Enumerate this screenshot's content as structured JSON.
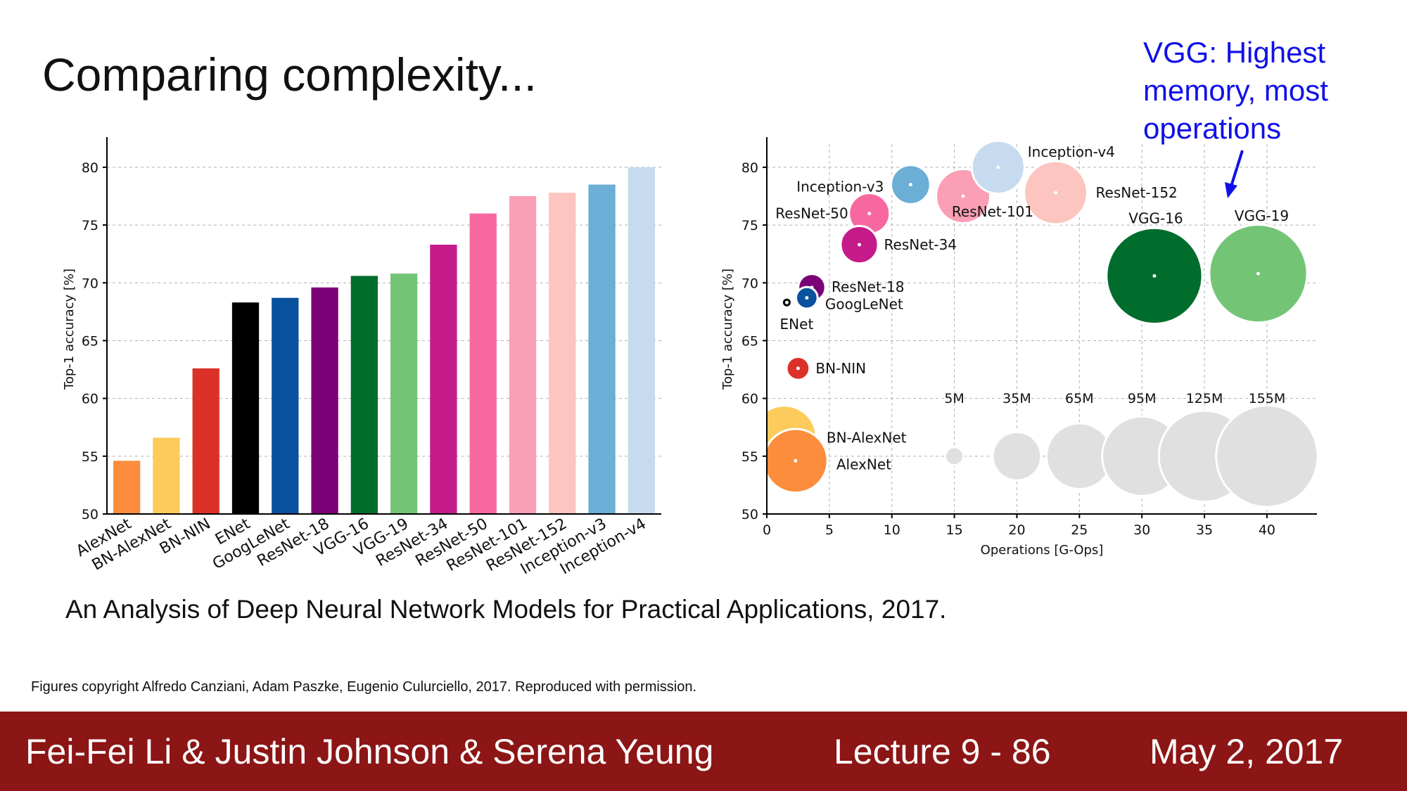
{
  "slide": {
    "title": "Comparing complexity...",
    "annotation": [
      "VGG: Highest",
      "memory, most",
      "operations"
    ],
    "citation": "An Analysis of Deep Neural Network Models for Practical Applications, 2017.",
    "copyright": "Figures copyright Alfredo Canziani, Adam Paszke, Eugenio Culurciello, 2017. Reproduced with permission.",
    "annotation_color": "#1010e8"
  },
  "footer": {
    "authors": "Fei-Fei Li & Justin Johnson & Serena Yeung",
    "lecture": "Lecture 9 - 86",
    "date": "May 2, 2017",
    "background": "#8c1515"
  },
  "chart_data": [
    {
      "type": "bar",
      "ylabel": "Top-1 accuracy [%]",
      "xlabel": "",
      "ylim": [
        50,
        82
      ],
      "yticks": [
        50,
        55,
        60,
        65,
        70,
        75,
        80
      ],
      "grid": true,
      "categories": [
        "AlexNet",
        "BN-AlexNet",
        "BN-NIN",
        "ENet",
        "GoogLeNet",
        "ResNet-18",
        "VGG-16",
        "VGG-19",
        "ResNet-34",
        "ResNet-50",
        "ResNet-101",
        "ResNet-152",
        "Inception-v3",
        "Inception-v4"
      ],
      "values": [
        54.6,
        56.6,
        62.6,
        68.3,
        68.7,
        69.6,
        70.6,
        70.8,
        73.3,
        76.0,
        77.5,
        77.8,
        78.5,
        80.0
      ],
      "colors": [
        "#fb8d3c",
        "#fdcb5c",
        "#dc3129",
        "#000000",
        "#08519c",
        "#7a0177",
        "#006d2c",
        "#74c476",
        "#c51b8a",
        "#f768a1",
        "#fa9fb5",
        "#fcc5c0",
        "#6baed6",
        "#c6dbef"
      ]
    },
    {
      "type": "scatter",
      "ylabel": "Top-1 accuracy [%]",
      "xlabel": "Operations [G-Ops]",
      "xlim": [
        0,
        44
      ],
      "ylim": [
        50,
        82
      ],
      "xticks": [
        0,
        5,
        10,
        15,
        20,
        25,
        30,
        35,
        40
      ],
      "yticks": [
        50,
        55,
        60,
        65,
        70,
        75,
        80
      ],
      "grid": true,
      "points": [
        {
          "name": "AlexNet",
          "x": 2.3,
          "y": 54.6,
          "params_m": 61,
          "color": "#fb8d3c"
        },
        {
          "name": "BN-AlexNet",
          "x": 1.4,
          "y": 56.6,
          "params_m": 62,
          "color": "#fdcb5c"
        },
        {
          "name": "BN-NIN",
          "x": 2.5,
          "y": 62.6,
          "params_m": 8,
          "color": "#dc3129"
        },
        {
          "name": "ENet",
          "x": 1.6,
          "y": 68.3,
          "params_m": 1,
          "color": "#000000"
        },
        {
          "name": "GoogLeNet",
          "x": 3.2,
          "y": 68.7,
          "params_m": 7,
          "color": "#08519c"
        },
        {
          "name": "ResNet-18",
          "x": 3.6,
          "y": 69.6,
          "params_m": 11,
          "color": "#7a0177"
        },
        {
          "name": "VGG-16",
          "x": 31.0,
          "y": 70.6,
          "params_m": 138,
          "color": "#006d2c"
        },
        {
          "name": "VGG-19",
          "x": 39.3,
          "y": 70.8,
          "params_m": 144,
          "color": "#74c476"
        },
        {
          "name": "ResNet-34",
          "x": 7.4,
          "y": 73.3,
          "params_m": 21,
          "color": "#c51b8a"
        },
        {
          "name": "ResNet-50",
          "x": 8.2,
          "y": 76.0,
          "params_m": 25,
          "color": "#f768a1"
        },
        {
          "name": "ResNet-101",
          "x": 15.7,
          "y": 77.5,
          "params_m": 44,
          "color": "#fa9fb5"
        },
        {
          "name": "ResNet-152",
          "x": 23.1,
          "y": 77.8,
          "params_m": 60,
          "color": "#fcc5c0"
        },
        {
          "name": "Inception-v3",
          "x": 11.5,
          "y": 78.5,
          "params_m": 23,
          "color": "#6baed6"
        },
        {
          "name": "Inception-v4",
          "x": 18.5,
          "y": 80.0,
          "params_m": 42,
          "color": "#c6dbef"
        }
      ],
      "size_legend": [
        {
          "label": "5M",
          "x": 15,
          "params_m": 5
        },
        {
          "label": "35M",
          "x": 20,
          "params_m": 35
        },
        {
          "label": "65M",
          "x": 25,
          "params_m": 65
        },
        {
          "label": "95M",
          "x": 30,
          "params_m": 95
        },
        {
          "label": "125M",
          "x": 35,
          "params_m": 125
        },
        {
          "label": "155M",
          "x": 40,
          "params_m": 155
        }
      ],
      "size_legend_y": 55,
      "size_legend_color": "#e0e0e0"
    }
  ]
}
